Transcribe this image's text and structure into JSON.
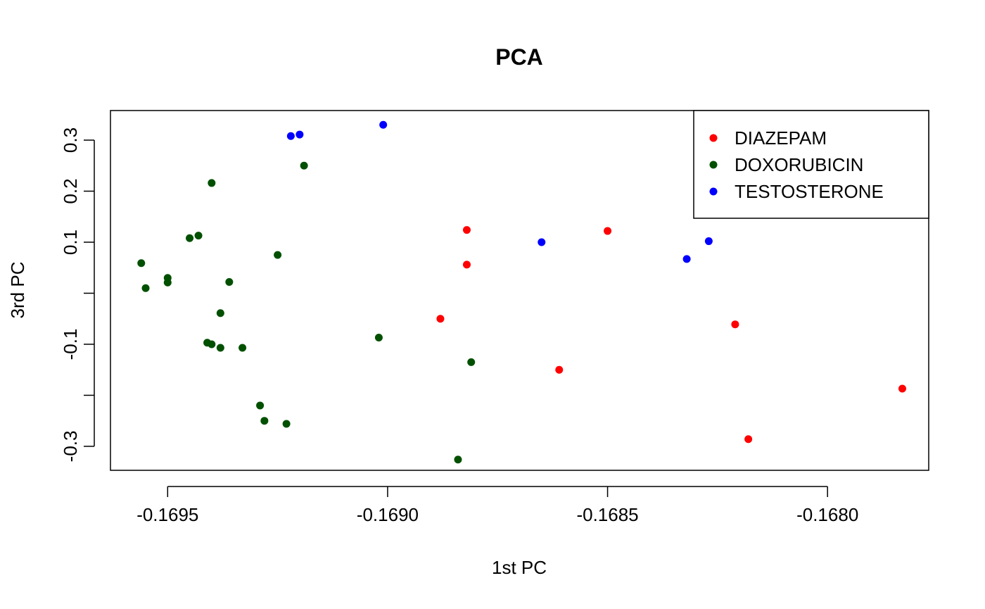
{
  "chart_data": {
    "type": "scatter",
    "title": "PCA",
    "xlabel": "1st PC",
    "ylabel": "3rd PC",
    "xlim": [
      -0.16963,
      -0.16777
    ],
    "ylim": [
      -0.347,
      0.358
    ],
    "x_ticks": [
      -0.1695,
      -0.169,
      -0.1685,
      -0.168
    ],
    "x_tick_labels": [
      "-0.1695",
      "-0.1690",
      "-0.1685",
      "-0.1680"
    ],
    "y_ticks": [
      -0.3,
      -0.1,
      0.1,
      0.2,
      0.3
    ],
    "y_tick_labels": [
      "-0.3",
      "-0.1",
      "0.1",
      "0.2",
      "0.3"
    ],
    "y_minor_ticks": [
      -0.2,
      0.0
    ],
    "grid": false,
    "legend_position": "top-right",
    "series": [
      {
        "name": "DIAZEPAM",
        "color": "#ff0000",
        "points": [
          [
            -0.16882,
            0.124
          ],
          [
            -0.16882,
            0.056
          ],
          [
            -0.16888,
            -0.05
          ],
          [
            -0.1685,
            0.122
          ],
          [
            -0.16861,
            -0.15
          ],
          [
            -0.16821,
            -0.061
          ],
          [
            -0.16818,
            -0.286
          ],
          [
            -0.16783,
            -0.187
          ]
        ]
      },
      {
        "name": "DOXORUBICIN",
        "color": "#005000",
        "points": [
          [
            -0.16956,
            0.059
          ],
          [
            -0.16955,
            0.01
          ],
          [
            -0.1695,
            0.021
          ],
          [
            -0.1695,
            0.03
          ],
          [
            -0.16945,
            0.108
          ],
          [
            -0.16943,
            0.113
          ],
          [
            -0.1694,
            0.216
          ],
          [
            -0.16938,
            -0.039
          ],
          [
            -0.16941,
            -0.097
          ],
          [
            -0.1694,
            -0.1
          ],
          [
            -0.16938,
            -0.107
          ],
          [
            -0.16936,
            0.022
          ],
          [
            -0.16933,
            -0.107
          ],
          [
            -0.16925,
            0.075
          ],
          [
            -0.16919,
            0.25
          ],
          [
            -0.16929,
            -0.22
          ],
          [
            -0.16928,
            -0.25
          ],
          [
            -0.16923,
            -0.256
          ],
          [
            -0.16902,
            -0.087
          ],
          [
            -0.16881,
            -0.135
          ],
          [
            -0.16884,
            -0.326
          ]
        ]
      },
      {
        "name": "TESTOSTERONE",
        "color": "#0000ff",
        "points": [
          [
            -0.16922,
            0.308
          ],
          [
            -0.1692,
            0.311
          ],
          [
            -0.16901,
            0.33
          ],
          [
            -0.16865,
            0.1
          ],
          [
            -0.16832,
            0.067
          ],
          [
            -0.16827,
            0.102
          ]
        ]
      }
    ]
  }
}
